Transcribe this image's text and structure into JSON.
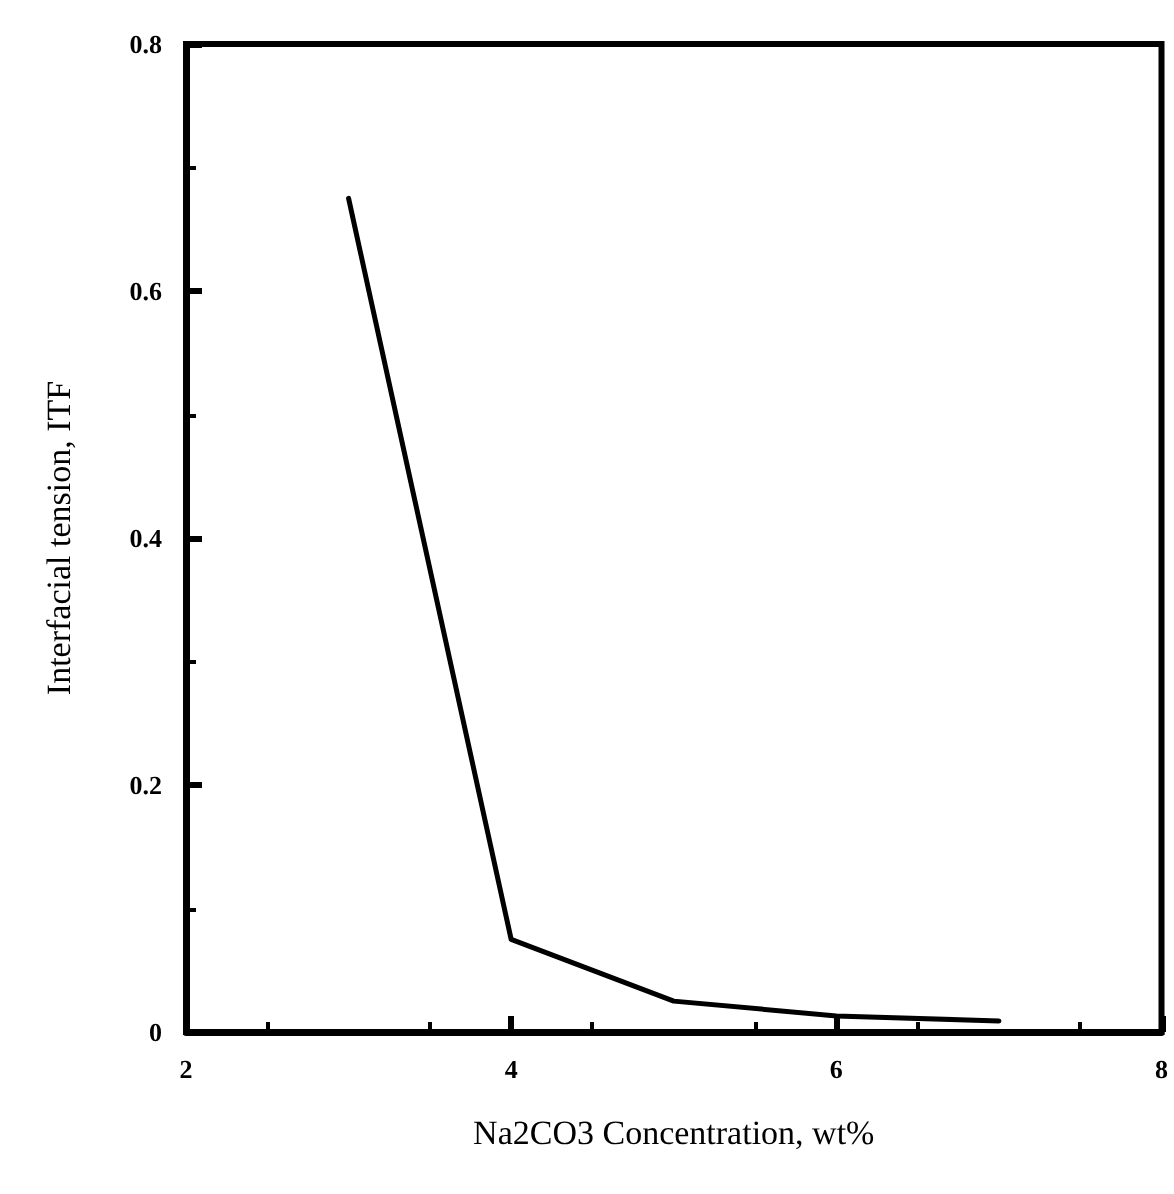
{
  "chart_data": {
    "type": "line",
    "xlabel": "Na2CO3 Concentration, wt%",
    "ylabel": "Interfacial tension, ITF",
    "x": [
      3,
      4,
      5,
      6,
      7
    ],
    "series": [
      {
        "color": "#000000",
        "values": [
          0.675,
          0.075,
          0.025,
          0.013,
          0.009
        ]
      }
    ],
    "xlim": [
      2,
      8
    ],
    "xticks": [
      2,
      4,
      6,
      8
    ],
    "ylim": [
      0,
      0.8
    ],
    "yticks": [
      0,
      0.2,
      0.4,
      0.6,
      0.8
    ],
    "grid": false,
    "marker": "none",
    "line_style": "solid"
  }
}
